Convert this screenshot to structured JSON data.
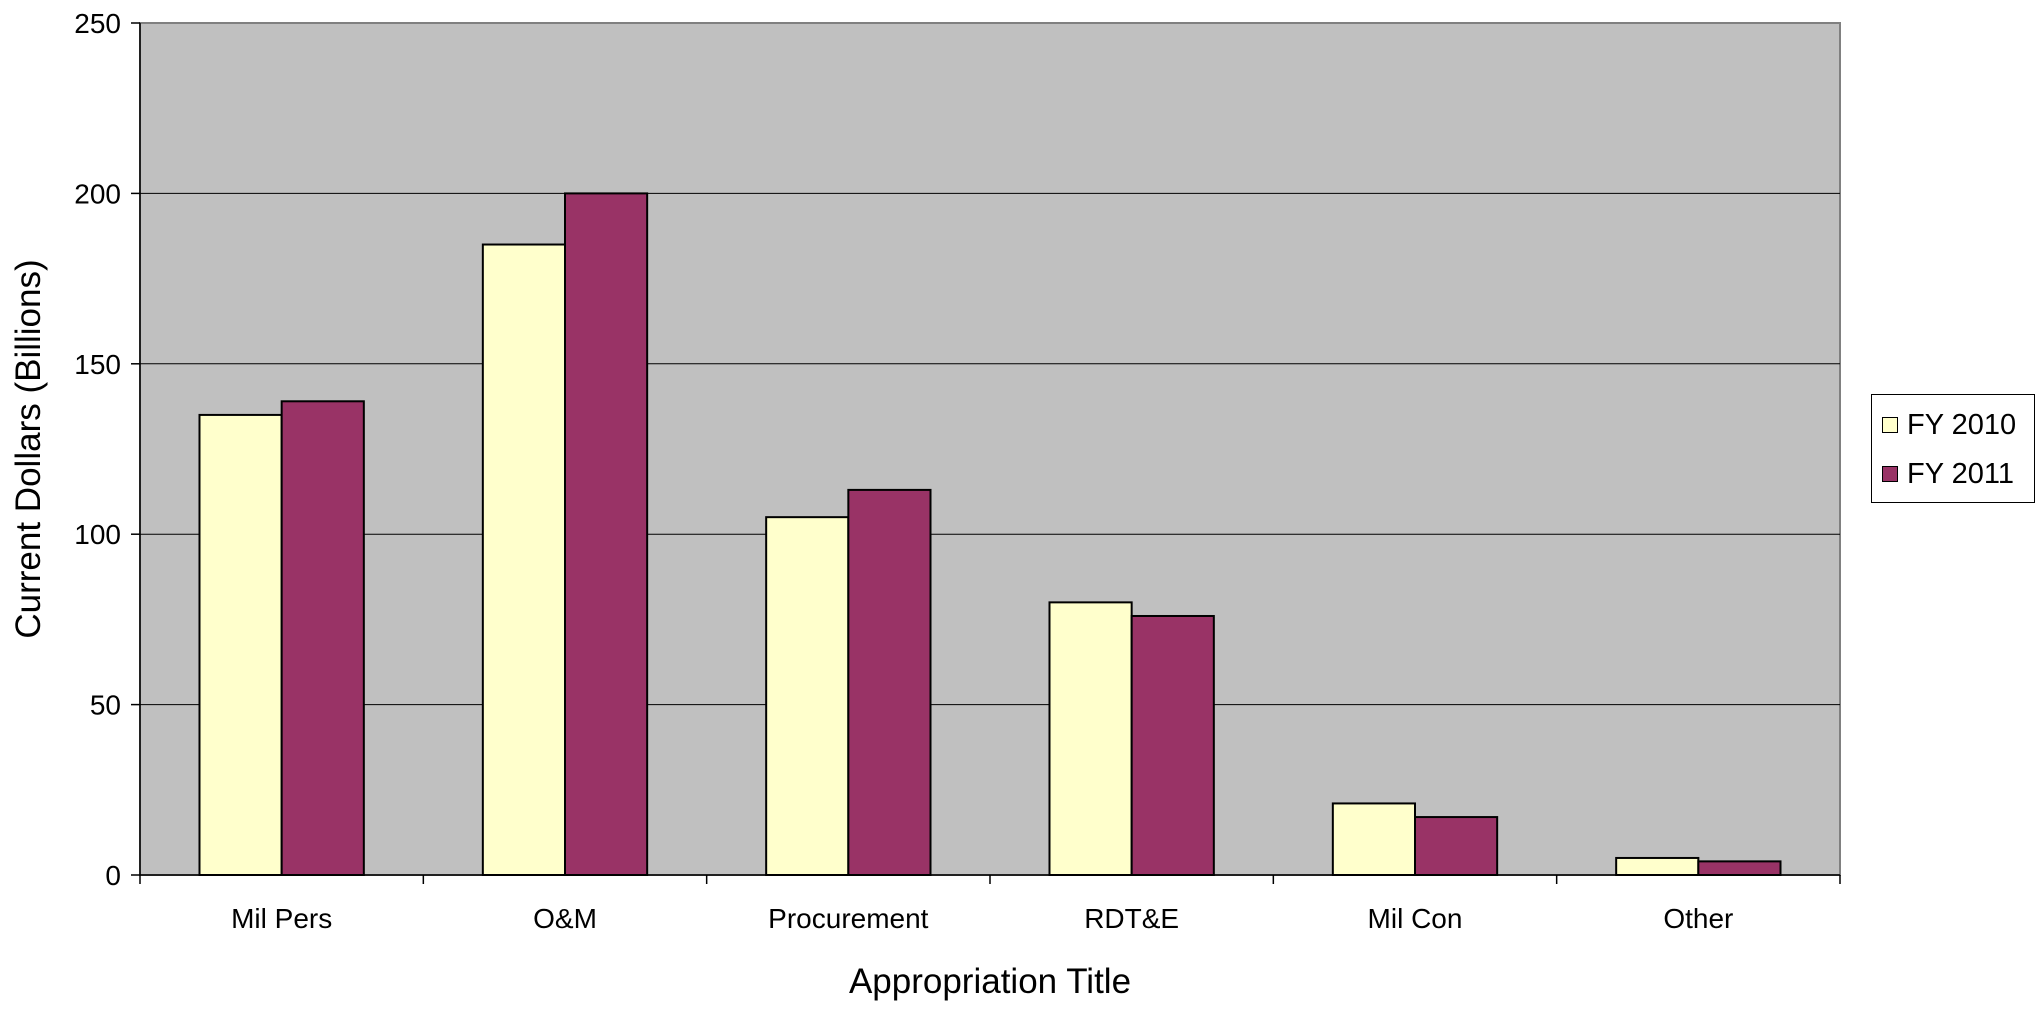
{
  "chart_data": {
    "type": "bar",
    "title": "",
    "xlabel": "Appropriation Title",
    "ylabel": "Current Dollars (Billions)",
    "ylim": [
      0,
      250
    ],
    "yticks": [
      "0",
      "50",
      "100",
      "150",
      "200",
      "250"
    ],
    "grid": true,
    "legend_position": "right",
    "plot_background": "#c0c0c0",
    "categories": [
      "Mil Pers",
      "O&M",
      "Procurement",
      "RDT&E",
      "Mil Con",
      "Other"
    ],
    "series": [
      {
        "name": "FY 2010",
        "color": "#ffffcc",
        "values": [
          135,
          185,
          105,
          80,
          21,
          5
        ]
      },
      {
        "name": "FY 2011",
        "color": "#993366",
        "values": [
          139,
          200,
          113,
          76,
          17,
          4
        ]
      }
    ]
  }
}
